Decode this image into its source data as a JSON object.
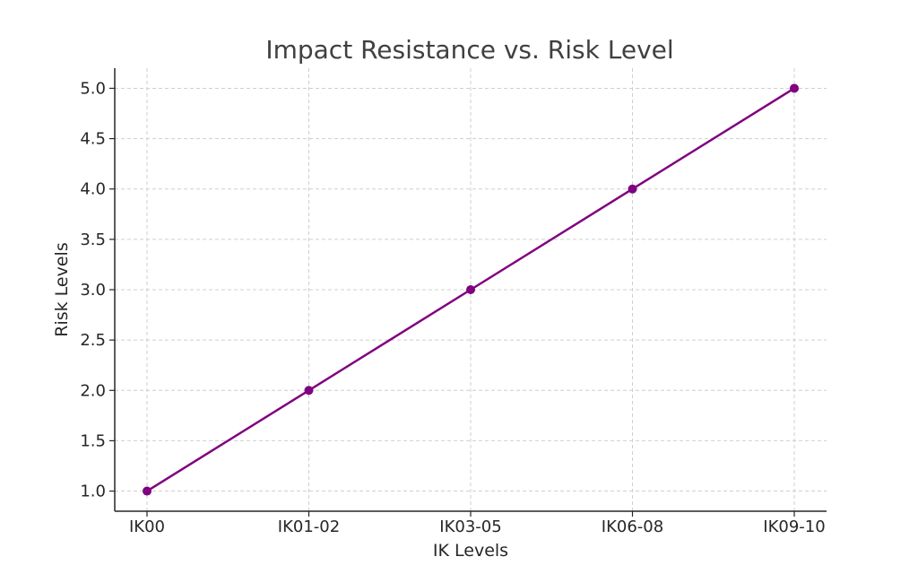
{
  "chart_data": {
    "type": "line",
    "title": "Impact Resistance vs. Risk Level",
    "xlabel": "IK Levels",
    "ylabel": "Risk Levels",
    "categories": [
      "IK00",
      "IK01-02",
      "IK03-05",
      "IK06-08",
      "IK09-10"
    ],
    "series": [
      {
        "values": [
          1,
          2,
          3,
          4,
          5
        ]
      }
    ],
    "ylim": [
      0.8,
      5.2
    ],
    "yticks": [
      "1.0",
      "1.5",
      "2.0",
      "2.5",
      "3.0",
      "3.5",
      "4.0",
      "4.5",
      "5.0"
    ],
    "grid": true,
    "legend": "none",
    "colors": {
      "line": "#800080",
      "marker": "#800080"
    }
  }
}
